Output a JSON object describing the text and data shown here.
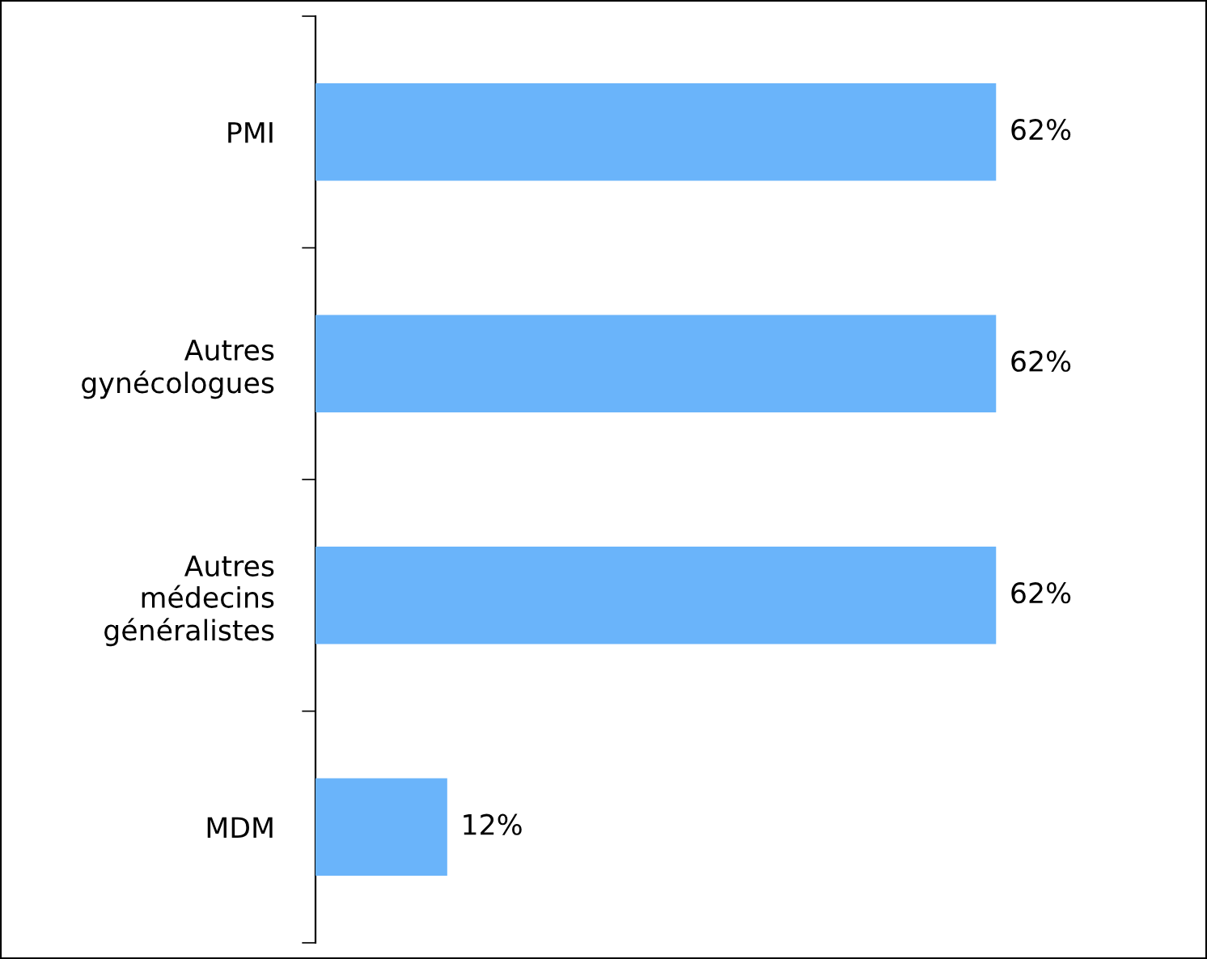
{
  "chart_data": {
    "type": "bar",
    "orientation": "horizontal",
    "categories": [
      "PMI",
      "Autres\ngynécologues",
      "Autres\nmédecins\ngénéralistes",
      "MDM"
    ],
    "values": [
      62,
      62,
      62,
      12
    ],
    "value_labels": [
      "62%",
      "62%",
      "62%",
      "12%"
    ],
    "color": "#6ab4fa",
    "tick_labels": "y"
  }
}
